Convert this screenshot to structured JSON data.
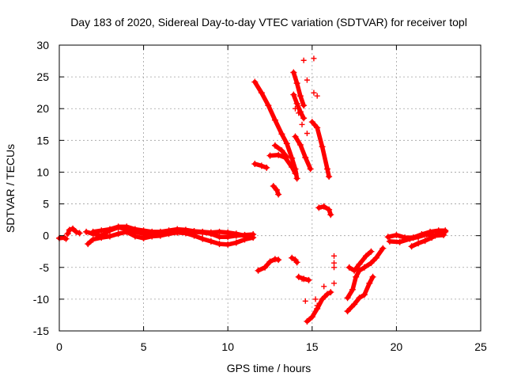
{
  "chart_data": {
    "type": "scatter",
    "title": "Day 183 of 2020, Sidereal Day-to-day VTEC variation (SDTVAR) for receiver topl",
    "xlabel": "GPS time / hours",
    "ylabel": "SDTVAR / TECUs",
    "xlim": [
      0,
      25
    ],
    "ylim": [
      -15,
      30
    ],
    "xticks": [
      0,
      5,
      10,
      15,
      20,
      25
    ],
    "yticks": [
      -15,
      -10,
      -5,
      0,
      5,
      10,
      15,
      20,
      25,
      30
    ],
    "xtick_labels": [
      "0",
      "5",
      "10",
      "15",
      "20",
      "25"
    ],
    "ytick_labels": [
      "-15",
      "-10",
      "-5",
      "0",
      "5",
      "10",
      "15",
      "20",
      "25",
      "30"
    ],
    "grid": true,
    "marker": "+",
    "color": "#ff0000",
    "series": [
      {
        "name": "band-start",
        "points": [
          [
            0.0,
            -0.4
          ],
          [
            0.3,
            -0.3
          ],
          [
            0.4,
            -0.5
          ]
        ]
      },
      {
        "name": "band-early-1",
        "points": [
          [
            0.5,
            0.3
          ],
          [
            0.6,
            0.9
          ],
          [
            0.8,
            1.1
          ],
          [
            1.0,
            0.6
          ],
          [
            1.2,
            0.4
          ]
        ]
      },
      {
        "name": "band-main-a",
        "points": [
          [
            1.6,
            0.6
          ],
          [
            2.0,
            0.3
          ],
          [
            2.5,
            0.0
          ],
          [
            3.0,
            0.8
          ],
          [
            3.5,
            1.3
          ],
          [
            4.0,
            1.0
          ],
          [
            4.5,
            0.6
          ],
          [
            5.0,
            0.3
          ],
          [
            5.5,
            0.3
          ],
          [
            6.0,
            0.4
          ],
          [
            6.5,
            0.5
          ],
          [
            7.0,
            0.6
          ],
          [
            7.5,
            0.8
          ],
          [
            8.0,
            0.6
          ],
          [
            8.5,
            0.5
          ],
          [
            9.0,
            0.3
          ],
          [
            9.5,
            -0.2
          ],
          [
            10.0,
            -0.2
          ],
          [
            10.5,
            0.0
          ],
          [
            11.0,
            0.1
          ],
          [
            11.5,
            0.2
          ]
        ]
      },
      {
        "name": "band-main-b",
        "points": [
          [
            1.7,
            -1.3
          ],
          [
            2.0,
            -0.6
          ],
          [
            2.5,
            -0.3
          ],
          [
            3.0,
            -0.1
          ],
          [
            3.5,
            0.3
          ],
          [
            4.0,
            0.6
          ],
          [
            4.5,
            -0.1
          ],
          [
            5.0,
            -0.4
          ],
          [
            5.5,
            -0.1
          ],
          [
            6.0,
            0.0
          ],
          [
            6.5,
            0.3
          ],
          [
            7.0,
            0.5
          ],
          [
            7.5,
            0.4
          ],
          [
            8.0,
            0.0
          ],
          [
            8.5,
            -0.5
          ],
          [
            9.0,
            -0.9
          ],
          [
            9.5,
            -1.3
          ],
          [
            10.0,
            -1.4
          ],
          [
            10.5,
            -1.1
          ],
          [
            11.0,
            -0.6
          ],
          [
            11.5,
            -0.3
          ]
        ]
      },
      {
        "name": "band-main-c",
        "points": [
          [
            2.0,
            0.6
          ],
          [
            2.5,
            0.8
          ],
          [
            3.0,
            1.0
          ],
          [
            3.5,
            1.4
          ],
          [
            4.0,
            1.4
          ],
          [
            4.5,
            1.0
          ],
          [
            5.0,
            0.8
          ],
          [
            5.5,
            0.6
          ],
          [
            6.0,
            0.6
          ],
          [
            6.5,
            0.8
          ],
          [
            7.0,
            1.0
          ],
          [
            7.5,
            0.9
          ],
          [
            8.0,
            0.7
          ],
          [
            8.5,
            0.6
          ],
          [
            9.0,
            0.5
          ],
          [
            9.5,
            0.6
          ],
          [
            10.0,
            0.5
          ],
          [
            10.5,
            0.3
          ],
          [
            11.0,
            0.0
          ]
        ]
      },
      {
        "name": "arc-descending-main",
        "points": [
          [
            11.6,
            24.2
          ],
          [
            12.0,
            22.5
          ],
          [
            12.4,
            20.5
          ],
          [
            12.8,
            18.2
          ],
          [
            13.2,
            16.0
          ],
          [
            13.5,
            14.5
          ],
          [
            13.8,
            12.2
          ],
          [
            14.0,
            10.5
          ],
          [
            14.1,
            9.0
          ]
        ]
      },
      {
        "name": "arc-12-horizontal",
        "points": [
          [
            11.6,
            11.3
          ],
          [
            12.0,
            11.0
          ],
          [
            12.3,
            10.7
          ]
        ]
      },
      {
        "name": "arc-12-mid",
        "points": [
          [
            12.5,
            12.6
          ],
          [
            13.0,
            12.7
          ],
          [
            13.4,
            12.3
          ],
          [
            13.8,
            10.8
          ],
          [
            14.0,
            9.8
          ]
        ]
      },
      {
        "name": "arc-13-short",
        "points": [
          [
            12.8,
            14.2
          ],
          [
            13.2,
            13.4
          ],
          [
            13.5,
            12.4
          ]
        ]
      },
      {
        "name": "arc-13-low",
        "points": [
          [
            12.7,
            7.8
          ],
          [
            12.9,
            7.2
          ],
          [
            13.0,
            6.5
          ]
        ]
      },
      {
        "name": "arc-14-top",
        "points": [
          [
            13.9,
            25.7
          ],
          [
            14.1,
            24.0
          ],
          [
            14.3,
            22.0
          ],
          [
            14.5,
            20.5
          ]
        ]
      },
      {
        "name": "arc-14-mid",
        "points": [
          [
            13.9,
            22.2
          ],
          [
            14.1,
            20.8
          ],
          [
            14.3,
            19.5
          ],
          [
            14.5,
            18.5
          ]
        ]
      },
      {
        "name": "arc-14-desc",
        "points": [
          [
            14.0,
            15.6
          ],
          [
            14.3,
            14.3
          ],
          [
            14.6,
            12.3
          ],
          [
            14.9,
            10.5
          ]
        ]
      },
      {
        "name": "arc-15-desc",
        "points": [
          [
            15.0,
            17.9
          ],
          [
            15.3,
            17.0
          ],
          [
            15.6,
            14.0
          ],
          [
            15.9,
            10.5
          ],
          [
            16.0,
            9.3
          ]
        ]
      },
      {
        "name": "arc-15-pos-small",
        "points": [
          [
            15.4,
            4.4
          ],
          [
            15.7,
            4.6
          ],
          [
            16.0,
            4.1
          ],
          [
            16.1,
            3.3
          ]
        ]
      },
      {
        "name": "arc-12-neg",
        "points": [
          [
            11.8,
            -5.5
          ],
          [
            12.2,
            -5.0
          ],
          [
            12.5,
            -4.1
          ],
          [
            12.8,
            -3.7
          ],
          [
            13.0,
            -3.8
          ]
        ]
      },
      {
        "name": "arc-14-neg",
        "points": [
          [
            13.8,
            -3.5
          ],
          [
            14.0,
            -3.8
          ],
          [
            14.1,
            -4.2
          ]
        ]
      },
      {
        "name": "arc-14-neg-b",
        "points": [
          [
            14.2,
            -6.5
          ],
          [
            14.5,
            -6.8
          ],
          [
            14.8,
            -7.0
          ]
        ]
      },
      {
        "name": "arc-15-neg-deep",
        "points": [
          [
            14.7,
            -13.5
          ],
          [
            15.0,
            -12.8
          ],
          [
            15.3,
            -11.5
          ],
          [
            15.6,
            -10.0
          ],
          [
            15.9,
            -9.2
          ],
          [
            16.1,
            -8.9
          ]
        ]
      },
      {
        "name": "arc-17-neg-a",
        "points": [
          [
            17.1,
            -11.9
          ],
          [
            17.5,
            -10.8
          ],
          [
            17.8,
            -9.8
          ],
          [
            18.1,
            -9.3
          ],
          [
            18.4,
            -7.5
          ],
          [
            18.6,
            -6.5
          ]
        ]
      },
      {
        "name": "arc-17-neg-b",
        "points": [
          [
            17.1,
            -9.8
          ],
          [
            17.4,
            -8.5
          ],
          [
            17.6,
            -6.5
          ],
          [
            17.8,
            -5.5
          ],
          [
            18.1,
            -5.0
          ],
          [
            18.5,
            -4.3
          ],
          [
            18.8,
            -3.5
          ],
          [
            19.2,
            -2.0
          ]
        ]
      },
      {
        "name": "arc-17-neg-c",
        "points": [
          [
            17.2,
            -5.0
          ],
          [
            17.5,
            -5.5
          ],
          [
            17.8,
            -4.5
          ],
          [
            18.2,
            -3.2
          ],
          [
            18.5,
            -2.5
          ]
        ]
      },
      {
        "name": "band-late-a",
        "points": [
          [
            19.5,
            -0.2
          ],
          [
            20.0,
            0.1
          ],
          [
            20.5,
            -0.3
          ],
          [
            21.0,
            -0.3
          ],
          [
            21.5,
            0.2
          ],
          [
            22.0,
            0.6
          ],
          [
            22.5,
            0.8
          ],
          [
            22.9,
            0.8
          ]
        ]
      },
      {
        "name": "band-late-b",
        "points": [
          [
            19.6,
            -0.9
          ],
          [
            20.2,
            -1.0
          ],
          [
            20.8,
            -0.5
          ],
          [
            21.3,
            -0.2
          ],
          [
            21.8,
            0.2
          ],
          [
            22.3,
            0.0
          ],
          [
            22.8,
            0.1
          ]
        ]
      },
      {
        "name": "band-late-c",
        "points": [
          [
            20.9,
            -1.7
          ],
          [
            21.3,
            -1.2
          ],
          [
            21.7,
            -0.8
          ],
          [
            22.1,
            -0.3
          ],
          [
            22.5,
            0.3
          ],
          [
            22.9,
            0.6
          ]
        ]
      }
    ],
    "isolated_points": [
      [
        14.5,
        27.6
      ],
      [
        15.1,
        27.9
      ],
      [
        14.7,
        24.5
      ],
      [
        15.1,
        22.5
      ],
      [
        15.3,
        22.0
      ],
      [
        14.0,
        20.0
      ],
      [
        14.2,
        19.3
      ],
      [
        14.4,
        17.5
      ],
      [
        14.7,
        16.1
      ],
      [
        15.2,
        -10.0
      ],
      [
        15.3,
        -11.0
      ],
      [
        14.4,
        -6.8
      ],
      [
        16.3,
        -4.3
      ],
      [
        16.3,
        -5.0
      ],
      [
        16.3,
        -7.5
      ],
      [
        15.7,
        -8.0
      ],
      [
        16.3,
        -3.2
      ],
      [
        14.6,
        -10.3
      ]
    ]
  }
}
